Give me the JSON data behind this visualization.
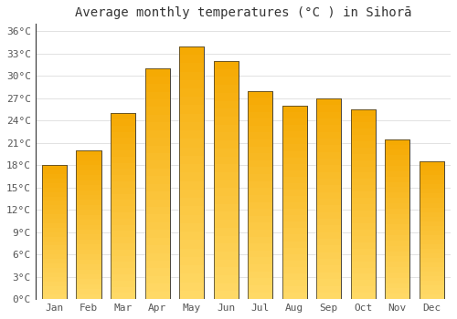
{
  "title": "Average monthly temperatures (°C ) in Sihorā",
  "months": [
    "Jan",
    "Feb",
    "Mar",
    "Apr",
    "May",
    "Jun",
    "Jul",
    "Aug",
    "Sep",
    "Oct",
    "Nov",
    "Dec"
  ],
  "values": [
    18,
    20,
    25,
    31,
    34,
    32,
    28,
    26,
    27,
    25.5,
    21.5,
    18.5
  ],
  "bar_color_top": "#F5A800",
  "bar_color_bottom": "#FFD966",
  "bar_edge_color": "#333333",
  "ylim": [
    0,
    37
  ],
  "yticks": [
    0,
    3,
    6,
    9,
    12,
    15,
    18,
    21,
    24,
    27,
    30,
    33,
    36
  ],
  "background_color": "#ffffff",
  "grid_color": "#dddddd",
  "title_fontsize": 10,
  "tick_fontsize": 8,
  "font_family": "monospace"
}
